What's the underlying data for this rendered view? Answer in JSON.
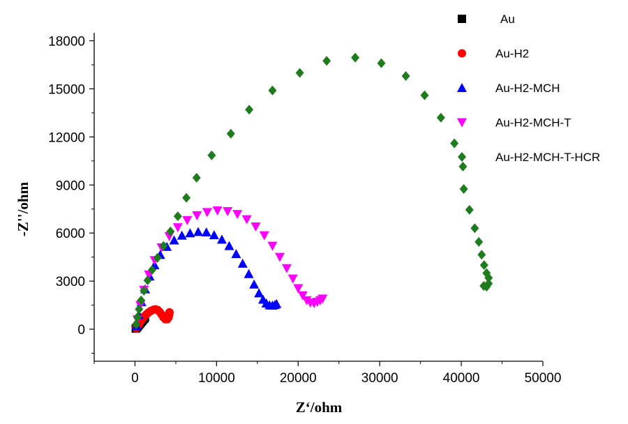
{
  "chart_data": {
    "type": "scatter",
    "xlabel": "Z‘/ohm",
    "ylabel": "-Z''/ohm",
    "xlim": [
      -5000,
      50000
    ],
    "ylim": [
      -2000,
      18500
    ],
    "x_ticks": [
      0,
      10000,
      20000,
      30000,
      40000,
      50000
    ],
    "y_ticks": [
      0,
      3000,
      6000,
      9000,
      12000,
      15000,
      18000
    ],
    "x_tick_labels": [
      "0",
      "10000",
      "20000",
      "30000",
      "40000",
      "50000"
    ],
    "y_tick_labels": [
      "0",
      "3000",
      "6000",
      "9000",
      "12000",
      "15000",
      "18000"
    ],
    "grid": false,
    "legend_position": "top-right",
    "series": [
      {
        "name": "Au",
        "marker": "square",
        "color": "#000000",
        "points": [
          [
            100,
            40
          ],
          [
            180,
            90
          ],
          [
            260,
            140
          ],
          [
            340,
            190
          ],
          [
            420,
            240
          ],
          [
            500,
            290
          ],
          [
            580,
            340
          ],
          [
            660,
            390
          ],
          [
            740,
            440
          ],
          [
            820,
            490
          ],
          [
            900,
            540
          ],
          [
            980,
            590
          ],
          [
            1060,
            640
          ],
          [
            1140,
            680
          ],
          [
            1220,
            720
          ]
        ]
      },
      {
        "name": "Au-H2",
        "marker": "circle",
        "color": "#ff0000",
        "points": [
          [
            150,
            60
          ],
          [
            300,
            170
          ],
          [
            450,
            290
          ],
          [
            600,
            420
          ],
          [
            780,
            560
          ],
          [
            980,
            700
          ],
          [
            1200,
            830
          ],
          [
            1450,
            950
          ],
          [
            1700,
            1060
          ],
          [
            1980,
            1150
          ],
          [
            2250,
            1210
          ],
          [
            2520,
            1240
          ],
          [
            2780,
            1200
          ],
          [
            3020,
            1080
          ],
          [
            3250,
            920
          ],
          [
            3480,
            740
          ],
          [
            3720,
            620
          ],
          [
            3950,
            620
          ],
          [
            4120,
            740
          ],
          [
            4200,
            900
          ],
          [
            4230,
            1050
          ]
        ]
      },
      {
        "name": "Au-H2-MCH",
        "marker": "triangle-up",
        "color": "#0000ff",
        "points": [
          [
            200,
            200
          ],
          [
            450,
            900
          ],
          [
            800,
            1700
          ],
          [
            1250,
            2500
          ],
          [
            1800,
            3300
          ],
          [
            2400,
            4000
          ],
          [
            3100,
            4650
          ],
          [
            3900,
            5150
          ],
          [
            4800,
            5550
          ],
          [
            5750,
            5850
          ],
          [
            6750,
            6000
          ],
          [
            7750,
            6080
          ],
          [
            8750,
            6050
          ],
          [
            9700,
            5880
          ],
          [
            10650,
            5600
          ],
          [
            11550,
            5200
          ],
          [
            12400,
            4700
          ],
          [
            13200,
            4100
          ],
          [
            13950,
            3450
          ],
          [
            14600,
            2800
          ],
          [
            15200,
            2250
          ],
          [
            15700,
            1850
          ],
          [
            16100,
            1620
          ],
          [
            16500,
            1500
          ],
          [
            16850,
            1480
          ],
          [
            17150,
            1520
          ],
          [
            17350,
            1580
          ]
        ]
      },
      {
        "name": "Au-H2-MCH-T",
        "marker": "triangle-down",
        "color": "#ff00ff",
        "points": [
          [
            300,
            600
          ],
          [
            650,
            1500
          ],
          [
            1100,
            2450
          ],
          [
            1700,
            3400
          ],
          [
            2400,
            4300
          ],
          [
            3250,
            5100
          ],
          [
            4200,
            5800
          ],
          [
            5250,
            6350
          ],
          [
            6400,
            6800
          ],
          [
            7600,
            7100
          ],
          [
            8850,
            7300
          ],
          [
            10100,
            7400
          ],
          [
            11350,
            7360
          ],
          [
            12550,
            7180
          ],
          [
            13700,
            6850
          ],
          [
            14800,
            6400
          ],
          [
            15850,
            5850
          ],
          [
            16850,
            5200
          ],
          [
            17750,
            4500
          ],
          [
            18600,
            3800
          ],
          [
            19350,
            3150
          ],
          [
            20000,
            2550
          ],
          [
            20550,
            2100
          ],
          [
            21050,
            1800
          ],
          [
            21500,
            1650
          ],
          [
            21950,
            1620
          ],
          [
            22350,
            1700
          ],
          [
            22700,
            1800
          ],
          [
            23000,
            1900
          ]
        ]
      },
      {
        "name": "Au-H2-MCH-T-HCR",
        "marker": "diamond",
        "color": "#1e7b1e",
        "points": [
          [
            150,
            300
          ],
          [
            300,
            750
          ],
          [
            500,
            1250
          ],
          [
            750,
            1800
          ],
          [
            1100,
            2400
          ],
          [
            1550,
            3050
          ],
          [
            2100,
            3700
          ],
          [
            2750,
            4450
          ],
          [
            3500,
            5200
          ],
          [
            4350,
            6100
          ],
          [
            5250,
            7050
          ],
          [
            6300,
            8200
          ],
          [
            7550,
            9450
          ],
          [
            9400,
            10850
          ],
          [
            11750,
            12200
          ],
          [
            14000,
            13700
          ],
          [
            16850,
            14900
          ],
          [
            20200,
            16000
          ],
          [
            23500,
            16750
          ],
          [
            27000,
            16950
          ],
          [
            30200,
            16600
          ],
          [
            33200,
            15800
          ],
          [
            35500,
            14600
          ],
          [
            37500,
            13200
          ],
          [
            39150,
            11600
          ],
          [
            40200,
            10150
          ],
          [
            40300,
            8750
          ],
          [
            41000,
            7450
          ],
          [
            41650,
            6300
          ],
          [
            42150,
            5450
          ],
          [
            42500,
            4650
          ],
          [
            42800,
            4000
          ],
          [
            43100,
            3500
          ],
          [
            43350,
            3200
          ],
          [
            43350,
            2850
          ],
          [
            43100,
            2650
          ],
          [
            42750,
            2700
          ]
        ]
      }
    ]
  }
}
